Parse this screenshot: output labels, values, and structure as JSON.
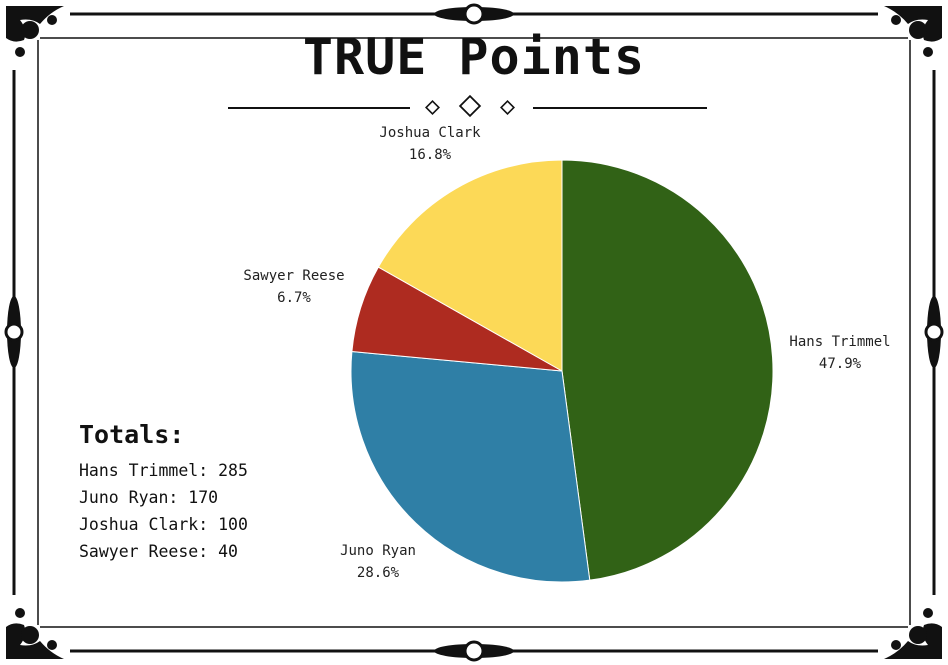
{
  "title": "TRUE Points",
  "chart_data": {
    "type": "pie",
    "slices": [
      {
        "label": "Hans Trimmel",
        "value": 285,
        "percent": "47.9%",
        "color": "#316216"
      },
      {
        "label": "Juno Ryan",
        "value": 170,
        "percent": "28.6%",
        "color": "#2f7fa6"
      },
      {
        "label": "Sawyer Reese",
        "value": 40,
        "percent": "6.7%",
        "color": "#ae2b20"
      },
      {
        "label": "Joshua Clark",
        "value": 100,
        "percent": "16.8%",
        "color": "#fcd957"
      }
    ],
    "title": "TRUE Points",
    "legend": "none"
  },
  "totals": {
    "heading": "Totals:",
    "rows": [
      "Hans Trimmel: 285",
      "Juno Ryan: 170",
      "Joshua Clark: 100",
      "Sawyer Reese: 40"
    ]
  }
}
